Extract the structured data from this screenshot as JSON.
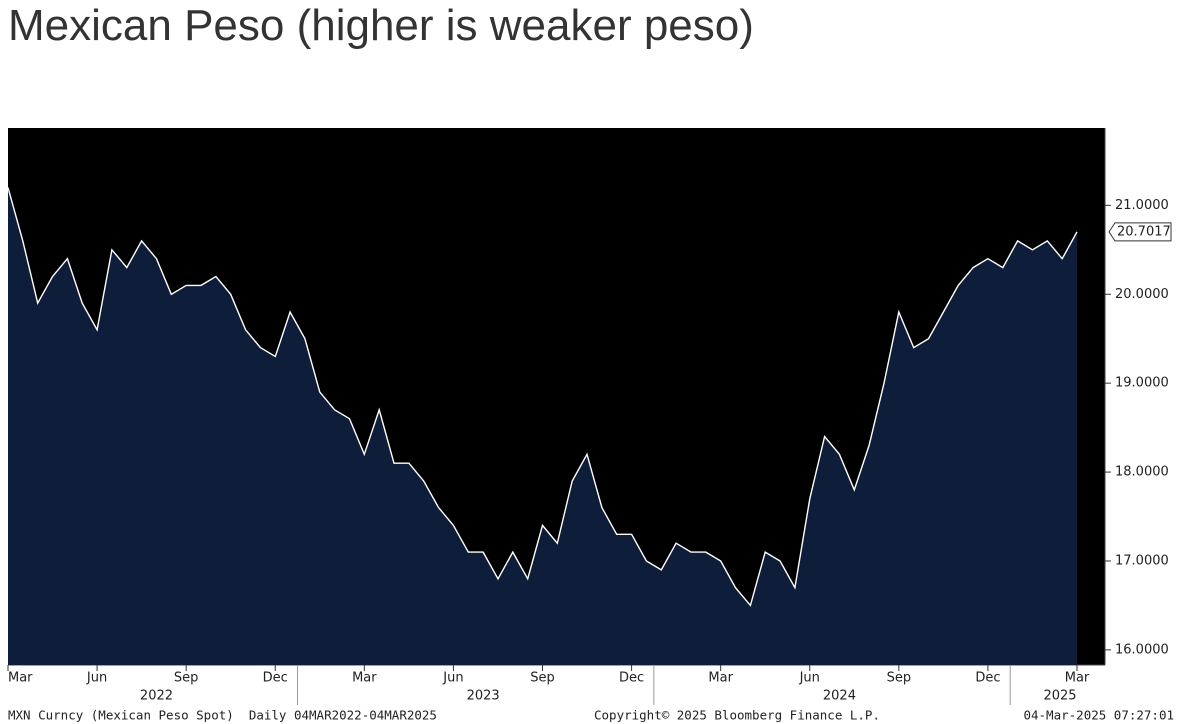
{
  "chart_data": {
    "type": "area",
    "title": "Mexican Peso (higher is weaker peso)",
    "categories": [
      "Mar",
      null,
      null,
      null,
      null,
      null,
      "Jun",
      null,
      null,
      null,
      null,
      null,
      "Sep",
      null,
      null,
      null,
      null,
      null,
      "Dec",
      null,
      null,
      null,
      null,
      null,
      "Mar",
      null,
      null,
      null,
      null,
      null,
      "Jun",
      null,
      null,
      null,
      null,
      null,
      "Sep",
      null,
      null,
      null,
      null,
      null,
      "Dec",
      null,
      null,
      null,
      null,
      null,
      "Mar",
      null,
      null,
      null,
      null,
      null,
      "Jun",
      null,
      null,
      null,
      null,
      null,
      "Sep",
      null,
      null,
      null,
      null,
      null,
      "Dec",
      null,
      null,
      null,
      null,
      null,
      "Mar"
    ],
    "values": [
      21.2,
      20.6,
      19.9,
      20.2,
      20.4,
      19.9,
      19.6,
      20.5,
      20.3,
      20.6,
      20.4,
      20.0,
      20.1,
      20.1,
      20.2,
      20.0,
      19.6,
      19.4,
      19.3,
      19.8,
      19.5,
      18.9,
      18.7,
      18.6,
      18.2,
      18.7,
      18.1,
      18.1,
      17.9,
      17.6,
      17.4,
      17.1,
      17.1,
      16.8,
      17.1,
      16.8,
      17.4,
      17.2,
      17.9,
      18.2,
      17.6,
      17.3,
      17.3,
      17.0,
      16.9,
      17.2,
      17.1,
      17.1,
      17.0,
      16.7,
      16.5,
      17.1,
      17.0,
      16.7,
      17.7,
      18.4,
      18.2,
      17.8,
      18.3,
      19.0,
      19.8,
      19.4,
      19.5,
      19.8,
      20.1,
      20.3,
      20.4,
      20.3,
      20.6,
      20.5,
      20.6,
      20.4,
      20.7017
    ],
    "color": "#0e1e3a",
    "line_color": "#ffffff",
    "year_labels": [
      "2022",
      "2023",
      "2024",
      "2025"
    ],
    "ylim": [
      15.83,
      21.87
    ],
    "yticks": [
      {
        "value": 16,
        "label": "16.0000"
      },
      {
        "value": 17,
        "label": "17.0000"
      },
      {
        "value": 18,
        "label": "18.0000"
      },
      {
        "value": 19,
        "label": "19.0000"
      },
      {
        "value": 20,
        "label": "20.0000"
      },
      {
        "value": 21,
        "label": "21.0000"
      }
    ],
    "footer_left": "MXN Curncy (Mexican Peso Spot)  Daily 04MAR2022-04MAR2025",
    "footer_center": "Copyright© 2025 Bloomberg Finance L.P.",
    "footer_right": "04-Mar-2025 07:27:01"
  }
}
